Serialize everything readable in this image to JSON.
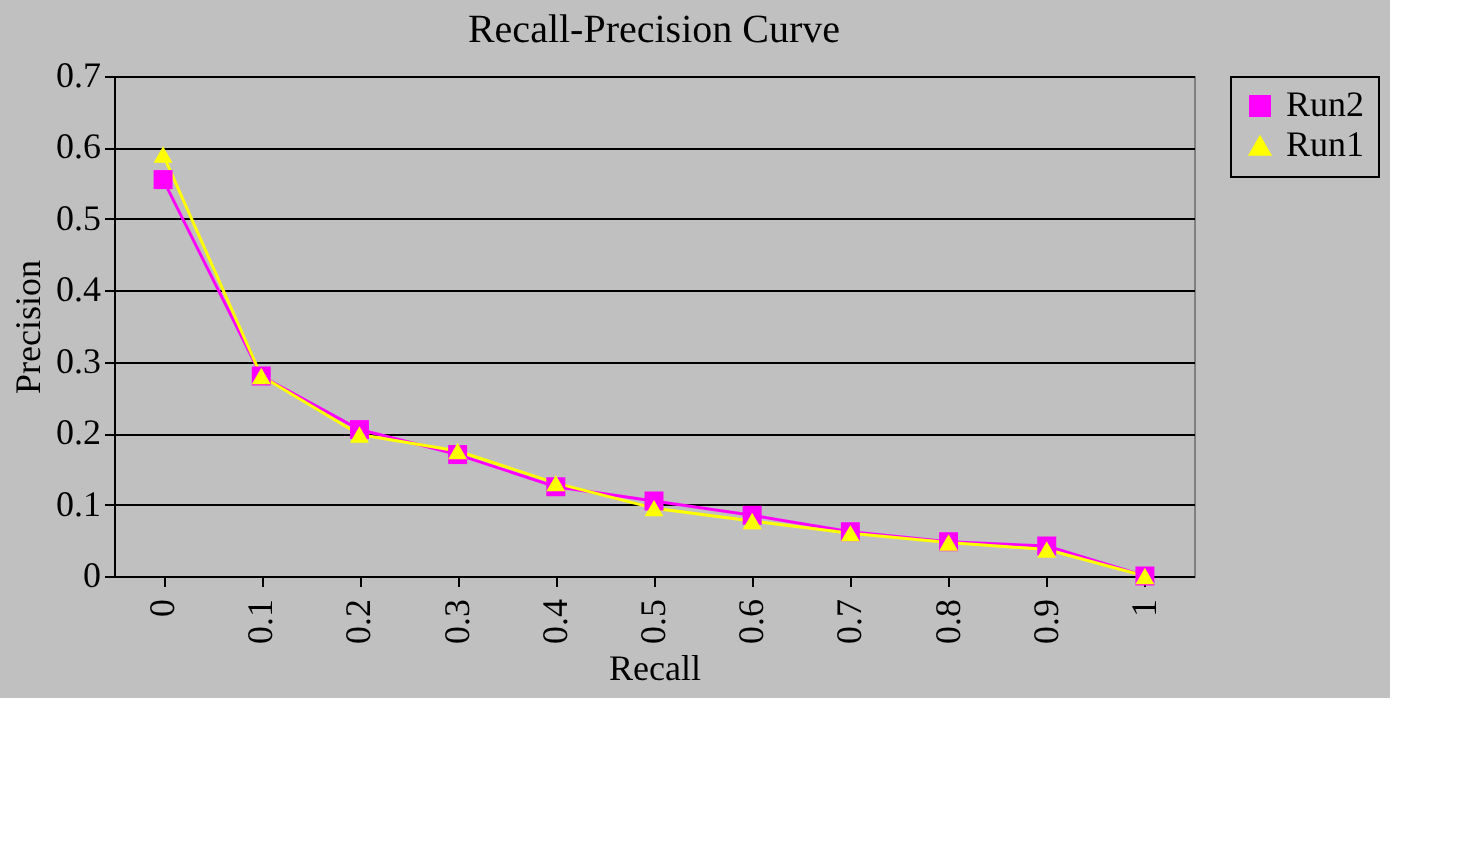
{
  "chart_data": {
    "type": "line",
    "title": "Recall-Precision Curve",
    "xlabel": "Recall",
    "ylabel": "Precision",
    "categories": [
      "0",
      "0.1",
      "0.2",
      "0.3",
      "0.4",
      "0.5",
      "0.6",
      "0.7",
      "0.8",
      "0.9",
      "1"
    ],
    "series": [
      {
        "name": "Run2",
        "color": "#ff00ff",
        "marker": "square",
        "values": [
          0.555,
          0.28,
          0.205,
          0.17,
          0.125,
          0.105,
          0.085,
          0.062,
          0.048,
          0.042,
          0.0
        ]
      },
      {
        "name": "Run1",
        "color": "#ffff00",
        "marker": "triangle",
        "values": [
          0.59,
          0.28,
          0.198,
          0.175,
          0.13,
          0.095,
          0.077,
          0.06,
          0.047,
          0.037,
          0.0
        ]
      }
    ],
    "ylim": [
      0,
      0.7
    ],
    "yticks": [
      0,
      0.1,
      0.2,
      0.3,
      0.4,
      0.5,
      0.6,
      0.7
    ],
    "grid": "y",
    "legend": "right",
    "line_style": "solid"
  }
}
